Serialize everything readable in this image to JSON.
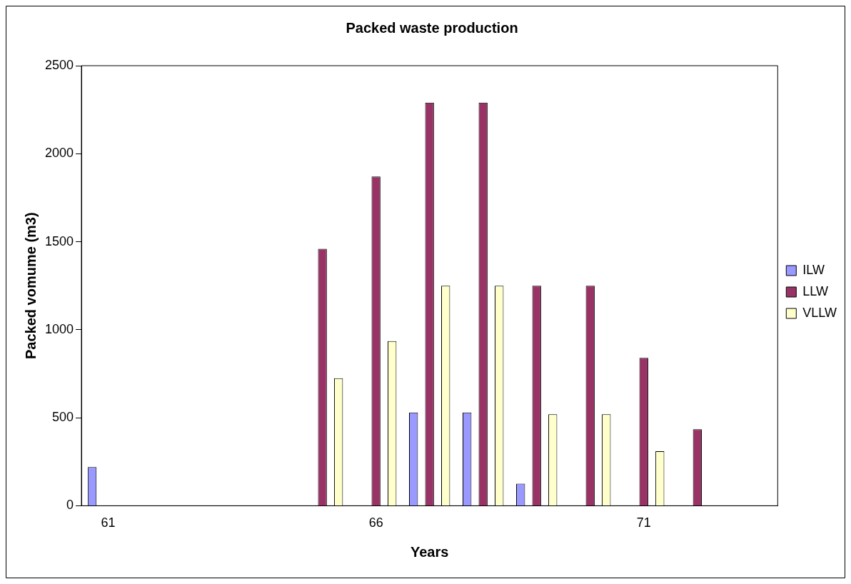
{
  "chart_data": {
    "type": "bar",
    "title": "Packed waste production",
    "xlabel": "Years",
    "ylabel": "Packed vomume (m3)",
    "categories": [
      "61",
      null,
      null,
      null,
      null,
      "66",
      null,
      null,
      null,
      null,
      "71",
      null,
      null
    ],
    "series": [
      {
        "name": "ILW",
        "color": "#9999ff",
        "values": [
          220,
          null,
          null,
          null,
          null,
          null,
          530,
          530,
          125,
          null,
          null,
          null,
          null
        ]
      },
      {
        "name": "LLW",
        "color": "#993366",
        "values": [
          null,
          null,
          null,
          null,
          1460,
          1870,
          2290,
          2290,
          1250,
          1250,
          840,
          435,
          null
        ]
      },
      {
        "name": "VLLW",
        "color": "#ffffcc",
        "values": [
          null,
          null,
          null,
          null,
          725,
          935,
          1250,
          1250,
          520,
          520,
          310,
          null,
          null
        ]
      }
    ],
    "ylim": [
      0,
      2500
    ],
    "yticks": [
      0,
      500,
      1000,
      1500,
      2000,
      2500
    ],
    "grid": false,
    "legend": "right"
  }
}
